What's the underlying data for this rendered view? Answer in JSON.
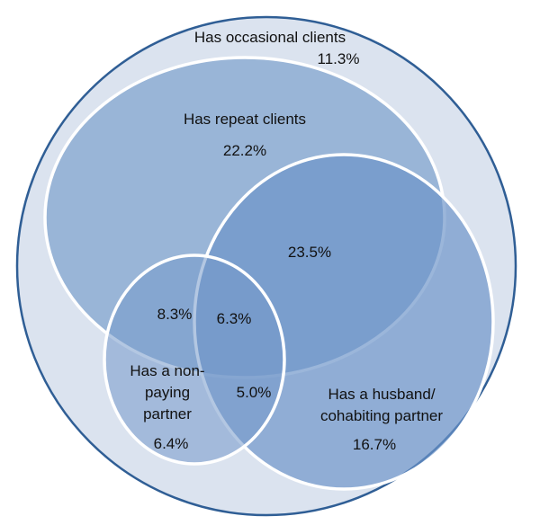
{
  "colors": {
    "outer_fill": "#dbe3ef",
    "outer_stroke": "#2f5e95",
    "repeat_fill": "#94b1d5",
    "husband_fill": "#6b94c8",
    "nonpaying_fill": "#7499cb",
    "circle_stroke": "#ffffff",
    "text": "#111111"
  },
  "sets": {
    "occasional": {
      "label": "Has occasional clients",
      "value": "11.3%"
    },
    "repeat": {
      "label": "Has repeat clients",
      "value": "22.2%"
    },
    "husband": {
      "label_line1": "Has a husband/",
      "label_line2": "cohabiting partner",
      "value": "16.7%"
    },
    "nonpaying": {
      "label_line1": "Has a non-",
      "label_line2": "paying",
      "label_line3": "partner",
      "value": "6.4%"
    }
  },
  "overlaps": {
    "repeat_husband": "23.5%",
    "repeat_nonpaying": "8.3%",
    "repeat_husband_nonpaying": "6.3%",
    "husband_nonpaying": "5.0%"
  }
}
